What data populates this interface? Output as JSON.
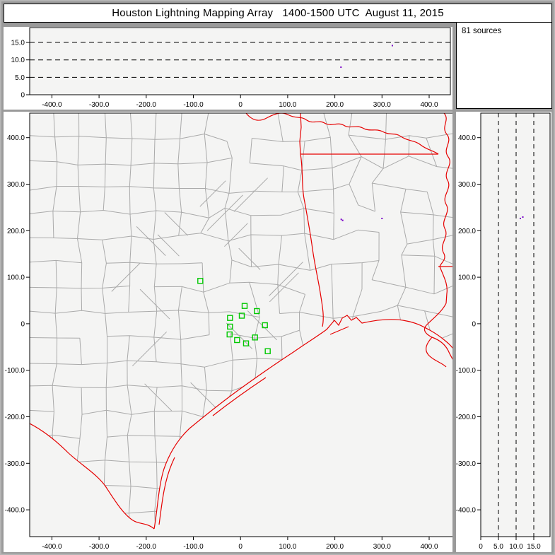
{
  "window": {
    "title": "Houston Lightning Mapping Array   1400-1500 UTC  August 11, 2015"
  },
  "sources_panel": {
    "label": "81 sources"
  },
  "colors": {
    "background": "#9a9a9a",
    "panel": "#ffffff",
    "plot_bg": "#f4f4f3",
    "frame": "#000000",
    "county": "#aaaaaa",
    "state_border": "#e60000",
    "station": "#00c800",
    "source_point": "#7a00c8"
  },
  "chart_data": [
    {
      "id": "altitude_vs_eastwest",
      "type": "scatter",
      "position": "top",
      "x_ticks": [
        {
          "value": -400,
          "label": "-400.0"
        },
        {
          "value": -300,
          "label": "-300.0"
        },
        {
          "value": -200,
          "label": "-200.0"
        },
        {
          "value": -100,
          "label": "-100.0"
        },
        {
          "value": 0,
          "label": "0"
        },
        {
          "value": 100,
          "label": "100.0"
        },
        {
          "value": 200,
          "label": "200.0"
        },
        {
          "value": 300,
          "label": "300.0"
        },
        {
          "value": 400,
          "label": "400.0"
        }
      ],
      "y_ticks": [
        {
          "value": 0,
          "label": "0"
        },
        {
          "value": 5,
          "label": "5.0"
        },
        {
          "value": 10,
          "label": "10.0"
        },
        {
          "value": 15,
          "label": "15.0"
        }
      ],
      "xlim": [
        -447,
        454
      ],
      "ylim": [
        0,
        19.3
      ],
      "dashed_hlines": [
        5,
        10,
        15
      ],
      "points": [
        {
          "x": 322,
          "y": 14.1
        },
        {
          "x": 213,
          "y": 7.9
        }
      ]
    },
    {
      "id": "plan_view_map",
      "type": "scatter",
      "position": "main",
      "x_ticks": [
        {
          "value": -400,
          "label": "-400.0"
        },
        {
          "value": -300,
          "label": "-300.0"
        },
        {
          "value": -200,
          "label": "-200.0"
        },
        {
          "value": -100,
          "label": "-100.0"
        },
        {
          "value": 0,
          "label": "0"
        },
        {
          "value": 100,
          "label": "100.0"
        },
        {
          "value": 200,
          "label": "200.0"
        },
        {
          "value": 300,
          "label": "300.0"
        },
        {
          "value": 400,
          "label": "400.0"
        }
      ],
      "y_ticks": [
        {
          "value": 400,
          "label": "400.0"
        },
        {
          "value": 300,
          "label": "300.0"
        },
        {
          "value": 200,
          "label": "200.0"
        },
        {
          "value": 100,
          "label": "100.0"
        },
        {
          "value": 0,
          "label": "0"
        },
        {
          "value": -100,
          "label": "-100.0"
        },
        {
          "value": -200,
          "label": "-200.0"
        },
        {
          "value": -300,
          "label": "-300.0"
        },
        {
          "value": -400,
          "label": "-400.0"
        }
      ],
      "xlim": [
        -447,
        454
      ],
      "ylim": [
        -457,
        452
      ],
      "map_layers": [
        "county-borders",
        "state-borders",
        "coastline",
        "rivers"
      ],
      "stations": [
        {
          "x": -85.3,
          "y": 92.1
        },
        {
          "x": 8.7,
          "y": 38.3
        },
        {
          "x": 34.6,
          "y": 27.2
        },
        {
          "x": 2.7,
          "y": 17.3
        },
        {
          "x": -22.3,
          "y": 12.5
        },
        {
          "x": -22.3,
          "y": -6.2
        },
        {
          "x": 51.7,
          "y": -3.2
        },
        {
          "x": -23.2,
          "y": -23.0
        },
        {
          "x": -7.3,
          "y": -35.1
        },
        {
          "x": 11.7,
          "y": -42.2
        },
        {
          "x": 30.7,
          "y": -29.5
        },
        {
          "x": 57.7,
          "y": -59.0
        }
      ],
      "points": [
        {
          "x": 213.6,
          "y": 224.3
        },
        {
          "x": 216.6,
          "y": 222.2
        },
        {
          "x": 300.0,
          "y": 226.3
        }
      ]
    },
    {
      "id": "altitude_vs_northsouth",
      "type": "scatter",
      "position": "right",
      "x_ticks": [
        {
          "value": 0,
          "label": "0"
        },
        {
          "value": 5,
          "label": "5.0"
        },
        {
          "value": 10,
          "label": "10.0"
        },
        {
          "value": 15,
          "label": "15.0"
        }
      ],
      "y_ticks": [
        {
          "value": 400,
          "label": "400.0"
        },
        {
          "value": 300,
          "label": "300.0"
        },
        {
          "value": 200,
          "label": "200.0"
        },
        {
          "value": 100,
          "label": "100.0"
        },
        {
          "value": 0,
          "label": "0"
        },
        {
          "value": -100,
          "label": "-100.0"
        },
        {
          "value": -200,
          "label": "-200.0"
        },
        {
          "value": -300,
          "label": "-300.0"
        },
        {
          "value": -400,
          "label": "-400.0"
        }
      ],
      "xlim": [
        0,
        19.6
      ],
      "ylim": [
        -457,
        452
      ],
      "dashed_vlines": [
        5,
        10,
        15
      ],
      "points": [
        {
          "x": 11.2,
          "y": 226.3
        },
        {
          "x": 11.9,
          "y": 229.3
        }
      ]
    }
  ]
}
